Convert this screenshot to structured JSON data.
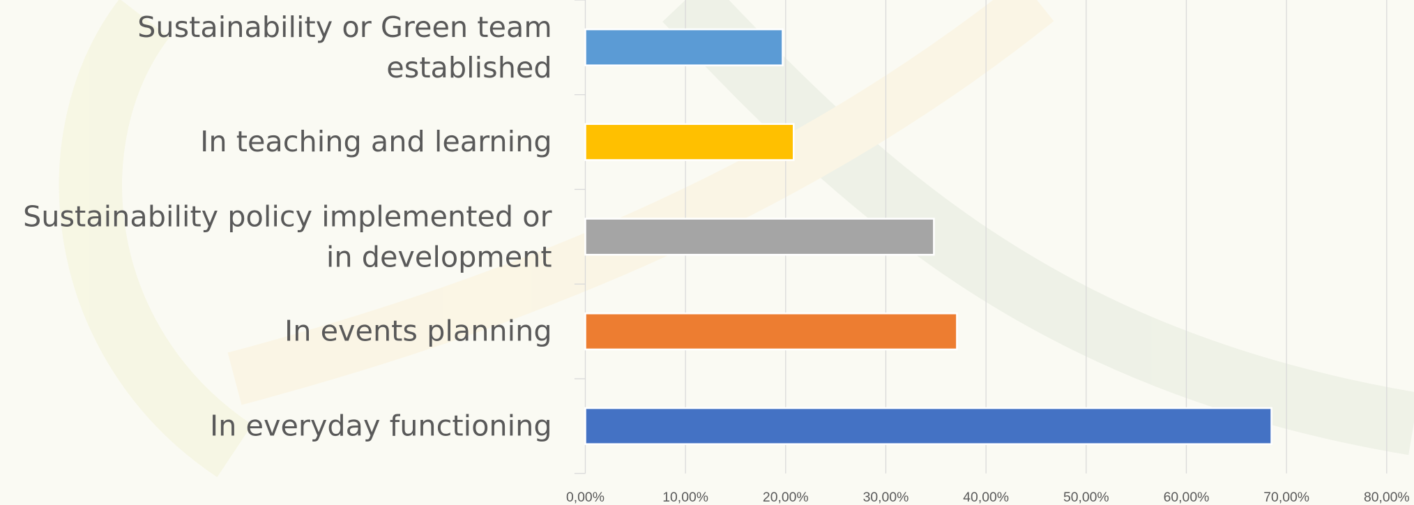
{
  "chart_data": {
    "type": "bar",
    "orientation": "horizontal",
    "categories": [
      "Sustainability or Green team established",
      "In teaching and learning",
      "Sustainability policy implemented or in development",
      "In events planning",
      "In everyday functioning"
    ],
    "values": [
      19.7,
      20.8,
      34.8,
      37.1,
      68.5
    ],
    "colors": [
      "#5b9bd5",
      "#ffc000",
      "#a5a5a5",
      "#ed7d31",
      "#4472c4"
    ],
    "xlim": [
      0,
      80
    ],
    "xticks": [
      {
        "value": 0,
        "label": "0,00%"
      },
      {
        "value": 10,
        "label": "10,00%"
      },
      {
        "value": 20,
        "label": "20,00%"
      },
      {
        "value": 30,
        "label": "30,00%"
      },
      {
        "value": 40,
        "label": "40,00%"
      },
      {
        "value": 50,
        "label": "50,00%"
      },
      {
        "value": 60,
        "label": "60,00%"
      },
      {
        "value": 70,
        "label": "70,00%"
      },
      {
        "value": 80,
        "label": "80,00%"
      }
    ],
    "grid": true
  }
}
